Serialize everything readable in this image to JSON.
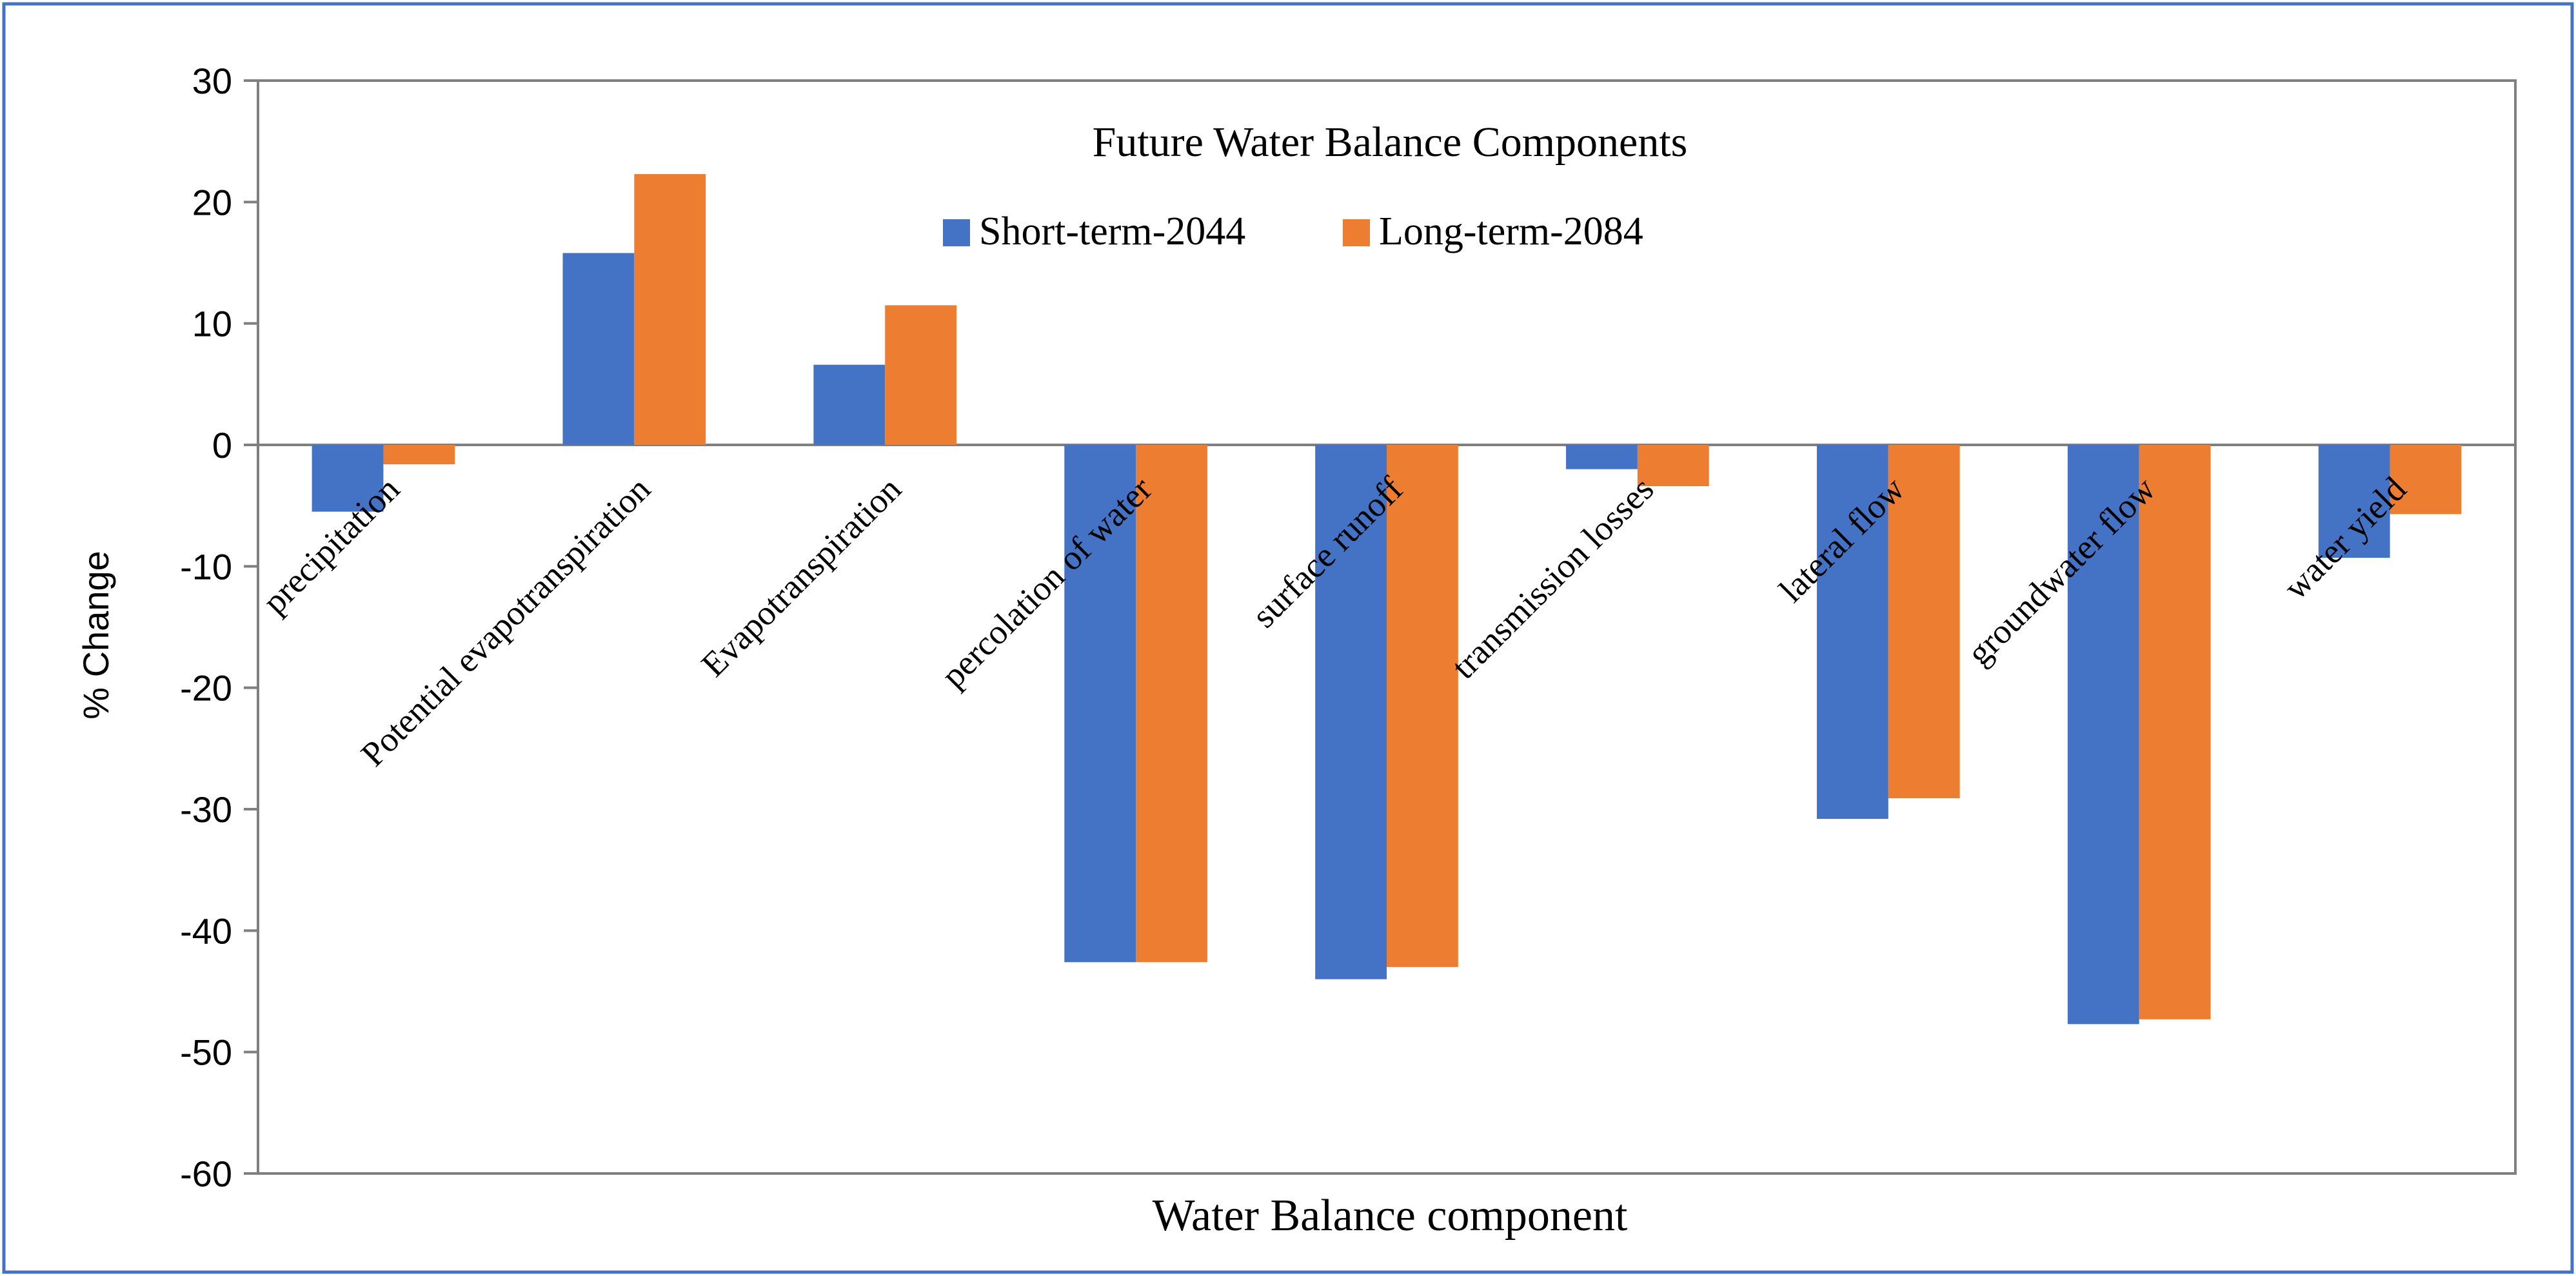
{
  "chart_data": {
    "type": "bar",
    "title": "Future Water Balance Components",
    "xlabel": "Water Balance component",
    "ylabel": "% Change",
    "ylim": [
      -60,
      30
    ],
    "yticks": [
      30,
      20,
      10,
      0,
      -10,
      -20,
      -30,
      -40,
      -50,
      -60
    ],
    "grid": false,
    "legend_position": "top-center",
    "categories": [
      "precipitation",
      "Potential evapotranspiration",
      "Evapotranspiration",
      "percolation of water",
      "surface runoff",
      "transmission losses",
      "lateral flow",
      "groundwater flow",
      "water yield"
    ],
    "series": [
      {
        "name": "Short-term-2044",
        "color": "#4472c4",
        "values": [
          -5.5,
          15.8,
          6.6,
          -42.6,
          -44.0,
          -2.0,
          -30.8,
          -47.7,
          -9.3
        ]
      },
      {
        "name": "Long-term-2084",
        "color": "#ed7d31",
        "values": [
          -1.6,
          22.3,
          11.5,
          -42.6,
          -43.0,
          -3.4,
          -29.1,
          -47.3,
          -5.7
        ]
      }
    ]
  },
  "frame_color": "#4472c4",
  "axis_color": "#7f7f7f"
}
